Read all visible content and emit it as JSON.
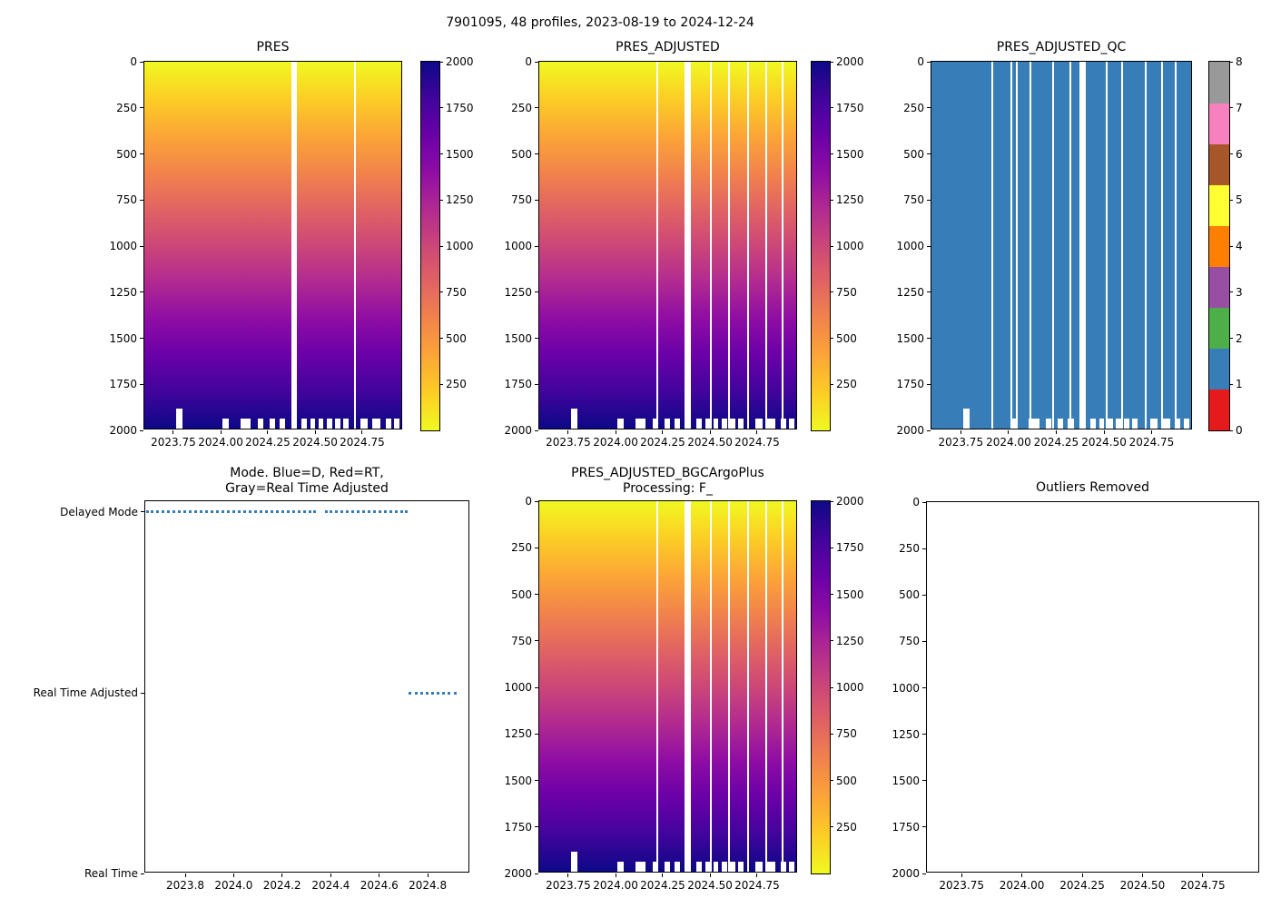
{
  "figure_title": "7901095, 48 profiles, 2023-08-19 to 2024-12-24",
  "float_id": "7901095",
  "n_profiles": 48,
  "date_range": "2023-08-19 to 2024-12-24",
  "colors": {
    "plasma_stops_low_to_high": [
      "#f0f921",
      "#fcce25",
      "#fca636",
      "#f2844b",
      "#e16462",
      "#cc4778",
      "#b12a90",
      "#8f0da4",
      "#6a00a8",
      "#41049d",
      "#0d0887"
    ],
    "qc_fill": "#377eb8",
    "mode_dot_color": "#377eb8",
    "qc_palette_0_to_8": [
      "#e41a1c",
      "#377eb8",
      "#4daf4a",
      "#984ea3",
      "#ff7f00",
      "#ffff33",
      "#a65628",
      "#f781bf",
      "#999999"
    ]
  },
  "shared_axes": {
    "depth_ticks": [
      {
        "label": "0",
        "pos": 0.0
      },
      {
        "label": "250",
        "pos": 0.125
      },
      {
        "label": "500",
        "pos": 0.25
      },
      {
        "label": "750",
        "pos": 0.375
      },
      {
        "label": "1000",
        "pos": 0.5
      },
      {
        "label": "1250",
        "pos": 0.625
      },
      {
        "label": "1500",
        "pos": 0.75
      },
      {
        "label": "1750",
        "pos": 0.875
      },
      {
        "label": "2000",
        "pos": 1.0
      }
    ],
    "time_ticks_heatmap": [
      {
        "label": "2023.75",
        "pos": 0.112
      },
      {
        "label": "2024.00",
        "pos": 0.295
      },
      {
        "label": "2024.25",
        "pos": 0.477
      },
      {
        "label": "2024.50",
        "pos": 0.66
      },
      {
        "label": "2024.75",
        "pos": 0.842
      }
    ],
    "colorbar_pressure_ticks": [
      {
        "label": "250",
        "pos": 0.125
      },
      {
        "label": "500",
        "pos": 0.25
      },
      {
        "label": "750",
        "pos": 0.375
      },
      {
        "label": "1000",
        "pos": 0.5
      },
      {
        "label": "1250",
        "pos": 0.625
      },
      {
        "label": "1500",
        "pos": 0.75
      },
      {
        "label": "1750",
        "pos": 0.875
      },
      {
        "label": "2000",
        "pos": 1.0
      }
    ]
  },
  "profile_bottom_notches": [
    {
      "x": 0.122,
      "w": 0.025,
      "h": 0.053
    },
    {
      "x": 0.303,
      "w": 0.022,
      "h": 0.026
    },
    {
      "x": 0.372,
      "w": 0.04,
      "h": 0.026
    },
    {
      "x": 0.437,
      "w": 0.022,
      "h": 0.026
    },
    {
      "x": 0.483,
      "w": 0.022,
      "h": 0.026
    },
    {
      "x": 0.522,
      "w": 0.022,
      "h": 0.026
    },
    {
      "x": 0.608,
      "w": 0.02,
      "h": 0.026
    },
    {
      "x": 0.641,
      "w": 0.02,
      "h": 0.026
    },
    {
      "x": 0.673,
      "w": 0.02,
      "h": 0.026
    },
    {
      "x": 0.705,
      "w": 0.02,
      "h": 0.026
    },
    {
      "x": 0.737,
      "w": 0.02,
      "h": 0.026
    },
    {
      "x": 0.769,
      "w": 0.02,
      "h": 0.026
    },
    {
      "x": 0.836,
      "w": 0.028,
      "h": 0.026
    },
    {
      "x": 0.882,
      "w": 0.03,
      "h": 0.026
    },
    {
      "x": 0.933,
      "w": 0.02,
      "h": 0.026
    },
    {
      "x": 0.965,
      "w": 0.02,
      "h": 0.026
    }
  ],
  "chart_data": [
    {
      "type": "heatmap",
      "id": "pres",
      "title": "PRES",
      "x_axis": {
        "tick_labels": [
          "2023.75",
          "2024.00",
          "2024.25",
          "2024.50",
          "2024.75"
        ],
        "range": [
          2023.6,
          2024.97
        ]
      },
      "y_axis": {
        "tick_labels": [
          "0",
          "250",
          "500",
          "750",
          "1000",
          "1250",
          "1500",
          "1750",
          "2000"
        ],
        "range": [
          0,
          2000
        ],
        "inverted": true
      },
      "value_range": [
        0,
        2000
      ],
      "colormap": "plasma reversed: yellow = 0 dbar (surface) to dark navy = 2000 dbar",
      "colorbar_tick_labels": [
        "250",
        "500",
        "750",
        "1000",
        "1250",
        "1500",
        "1750",
        "2000"
      ],
      "missing_profile_gaps": [
        {
          "x": 0.568,
          "w": 0.023
        },
        {
          "x": 0.812,
          "w": 0.007
        }
      ]
    },
    {
      "type": "heatmap",
      "id": "pres_adjusted",
      "title": "PRES_ADJUSTED",
      "x_axis": {
        "tick_labels": [
          "2023.75",
          "2024.00",
          "2024.25",
          "2024.50",
          "2024.75"
        ],
        "range": [
          2023.6,
          2024.97
        ]
      },
      "y_axis": {
        "tick_labels": [
          "0",
          "250",
          "500",
          "750",
          "1000",
          "1250",
          "1500",
          "1750",
          "2000"
        ],
        "range": [
          0,
          2000
        ],
        "inverted": true
      },
      "value_range": [
        0,
        2000
      ],
      "colormap": "plasma reversed: yellow = 0 dbar (surface) to dark navy = 2000 dbar",
      "colorbar_tick_labels": [
        "250",
        "500",
        "750",
        "1000",
        "1250",
        "1500",
        "1750",
        "2000"
      ],
      "missing_profile_gaps": [
        {
          "x": 0.452,
          "w": 0.007
        },
        {
          "x": 0.56,
          "w": 0.026
        },
        {
          "x": 0.658,
          "w": 0.008
        },
        {
          "x": 0.729,
          "w": 0.008
        },
        {
          "x": 0.802,
          "w": 0.008
        },
        {
          "x": 0.873,
          "w": 0.008
        },
        {
          "x": 0.937,
          "w": 0.007
        }
      ]
    },
    {
      "type": "heatmap",
      "id": "pres_adjusted_qc",
      "title": "PRES_ADJUSTED_QC",
      "x_axis": {
        "tick_labels": [
          "2023.75",
          "2024.00",
          "2024.25",
          "2024.50",
          "2024.75"
        ],
        "range": [
          2023.6,
          2024.97
        ]
      },
      "y_axis": {
        "tick_labels": [
          "0",
          "250",
          "500",
          "750",
          "1000",
          "1250",
          "1500",
          "1750",
          "2000"
        ],
        "range": [
          0,
          2000
        ],
        "inverted": true
      },
      "uniform_qc_value": 1,
      "fill_description": "all profiles QC flag = 1 (blue)",
      "qc_colorbar_ticks": [
        {
          "label": "0",
          "pos": 0.0
        },
        {
          "label": "1",
          "pos": 0.125
        },
        {
          "label": "2",
          "pos": 0.25
        },
        {
          "label": "3",
          "pos": 0.375
        },
        {
          "label": "4",
          "pos": 0.5
        },
        {
          "label": "5",
          "pos": 0.625
        },
        {
          "label": "6",
          "pos": 0.75
        },
        {
          "label": "7",
          "pos": 0.875
        },
        {
          "label": "8",
          "pos": 1.0
        }
      ],
      "missing_profile_gaps": [
        {
          "x": 0.228,
          "w": 0.007
        },
        {
          "x": 0.301,
          "w": 0.007
        },
        {
          "x": 0.322,
          "w": 0.007
        },
        {
          "x": 0.376,
          "w": 0.007
        },
        {
          "x": 0.461,
          "w": 0.007
        },
        {
          "x": 0.527,
          "w": 0.007
        },
        {
          "x": 0.566,
          "w": 0.025
        },
        {
          "x": 0.665,
          "w": 0.007
        },
        {
          "x": 0.727,
          "w": 0.007
        },
        {
          "x": 0.816,
          "w": 0.007
        },
        {
          "x": 0.877,
          "w": 0.007
        },
        {
          "x": 0.932,
          "w": 0.007
        }
      ]
    },
    {
      "type": "scatter",
      "id": "mode",
      "title_lines": [
        "Mode. Blue=D, Red=RT,",
        "Gray=Real Time Adjusted"
      ],
      "y_categories": [
        {
          "label": "Delayed Mode",
          "pos": 0.029
        },
        {
          "label": "Real Time Adjusted",
          "pos": 0.515
        },
        {
          "label": "Real Time",
          "pos": 1.0
        }
      ],
      "x_ticks": [
        {
          "label": "2023.8",
          "pos": 0.123
        },
        {
          "label": "2024.0",
          "pos": 0.272
        },
        {
          "label": "2024.2",
          "pos": 0.421
        },
        {
          "label": "2024.4",
          "pos": 0.571
        },
        {
          "label": "2024.6",
          "pos": 0.72
        },
        {
          "label": "2024.8",
          "pos": 0.869
        }
      ],
      "dot_segments": [
        {
          "y_pos": 0.029,
          "x0": 0.004,
          "x1": 0.525,
          "mode": "Delayed Mode"
        },
        {
          "y_pos": 0.029,
          "x0": 0.553,
          "x1": 0.806,
          "mode": "Delayed Mode"
        },
        {
          "y_pos": 0.515,
          "x0": 0.81,
          "x1": 0.958,
          "mode": "Real Time Adjusted"
        }
      ]
    },
    {
      "type": "heatmap",
      "id": "pres_adjusted_bgc",
      "title_lines": [
        "PRES_ADJUSTED_BGCArgoPlus",
        "Processing: F_"
      ],
      "x_axis": {
        "tick_labels": [
          "2023.75",
          "2024.00",
          "2024.25",
          "2024.50",
          "2024.75"
        ],
        "range": [
          2023.6,
          2024.97
        ]
      },
      "y_axis": {
        "tick_labels": [
          "0",
          "250",
          "500",
          "750",
          "1000",
          "1250",
          "1500",
          "1750",
          "2000"
        ],
        "range": [
          0,
          2000
        ],
        "inverted": true
      },
      "value_range": [
        0,
        2000
      ],
      "colormap": "plasma reversed: yellow = 0 dbar (surface) to dark navy = 2000 dbar",
      "colorbar_tick_labels": [
        "250",
        "500",
        "750",
        "1000",
        "1250",
        "1500",
        "1750",
        "2000"
      ],
      "missing_profile_gaps": [
        {
          "x": 0.452,
          "w": 0.007
        },
        {
          "x": 0.56,
          "w": 0.026
        },
        {
          "x": 0.658,
          "w": 0.008
        },
        {
          "x": 0.729,
          "w": 0.008
        },
        {
          "x": 0.802,
          "w": 0.008
        },
        {
          "x": 0.873,
          "w": 0.008
        },
        {
          "x": 0.937,
          "w": 0.007
        }
      ]
    },
    {
      "type": "empty",
      "id": "outliers",
      "title": "Outliers Removed",
      "x_ticks": [
        {
          "label": "2023.75",
          "pos": 0.104
        },
        {
          "label": "2024.00",
          "pos": 0.285
        },
        {
          "label": "2024.25",
          "pos": 0.466
        },
        {
          "label": "2024.50",
          "pos": 0.647
        },
        {
          "label": "2024.75",
          "pos": 0.828
        }
      ],
      "y_axis": {
        "tick_labels": [
          "0",
          "250",
          "500",
          "750",
          "1000",
          "1250",
          "1500",
          "1750",
          "2000"
        ],
        "range": [
          0,
          2000
        ],
        "inverted": true
      }
    }
  ]
}
